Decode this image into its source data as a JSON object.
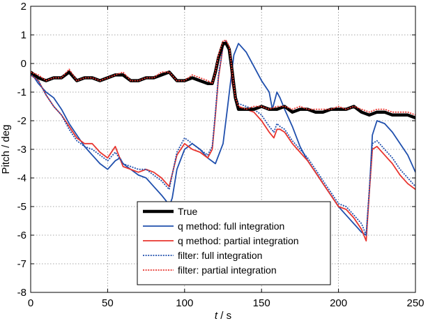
{
  "chart_data": {
    "type": "line",
    "xlabel": "t / s",
    "ylabel": "Pitch / deg",
    "xlim": [
      0,
      250
    ],
    "ylim": [
      -8,
      2
    ],
    "xticks": [
      0,
      50,
      100,
      150,
      200,
      250
    ],
    "yticks": [
      -8,
      -7,
      -6,
      -5,
      -4,
      -3,
      -2,
      -1,
      0,
      1,
      2
    ],
    "grid": true,
    "legend_position": "bottom-center",
    "series": [
      {
        "name": "True",
        "color": "#000000",
        "style": "solid-thick",
        "x": [
          0,
          5,
          10,
          15,
          20,
          25,
          30,
          35,
          40,
          45,
          50,
          55,
          60,
          65,
          70,
          75,
          80,
          85,
          90,
          95,
          100,
          105,
          110,
          115,
          118,
          120,
          122,
          125,
          127,
          129,
          131,
          133,
          135,
          140,
          145,
          150,
          155,
          160,
          165,
          170,
          175,
          180,
          185,
          190,
          195,
          200,
          205,
          210,
          215,
          220,
          225,
          230,
          235,
          240,
          245,
          250
        ],
        "y": [
          -0.3,
          -0.5,
          -0.6,
          -0.5,
          -0.5,
          -0.3,
          -0.6,
          -0.5,
          -0.5,
          -0.6,
          -0.5,
          -0.4,
          -0.4,
          -0.6,
          -0.6,
          -0.5,
          -0.5,
          -0.4,
          -0.3,
          -0.6,
          -0.6,
          -0.5,
          -0.6,
          -0.7,
          -0.7,
          -0.3,
          0.2,
          0.7,
          0.7,
          0.5,
          -0.3,
          -1.2,
          -1.6,
          -1.6,
          -1.6,
          -1.5,
          -1.6,
          -1.6,
          -1.5,
          -1.7,
          -1.6,
          -1.6,
          -1.7,
          -1.7,
          -1.6,
          -1.6,
          -1.6,
          -1.5,
          -1.7,
          -1.8,
          -1.7,
          -1.7,
          -1.8,
          -1.8,
          -1.8,
          -1.9
        ]
      },
      {
        "name": "q method: full integration",
        "color": "#1f4fad",
        "style": "solid",
        "x": [
          0,
          5,
          10,
          15,
          20,
          25,
          30,
          35,
          40,
          45,
          50,
          55,
          58,
          60,
          65,
          70,
          75,
          80,
          85,
          88,
          90,
          92,
          95,
          100,
          105,
          110,
          115,
          120,
          125,
          128,
          130,
          132,
          135,
          140,
          145,
          150,
          155,
          157,
          160,
          162,
          165,
          170,
          175,
          180,
          185,
          190,
          195,
          200,
          205,
          210,
          215,
          218,
          220,
          222,
          225,
          230,
          235,
          240,
          245,
          250
        ],
        "y": [
          -0.3,
          -0.7,
          -1.0,
          -1.2,
          -1.6,
          -2.1,
          -2.5,
          -2.9,
          -3.2,
          -3.5,
          -3.7,
          -3.4,
          -3.3,
          -3.5,
          -3.7,
          -3.9,
          -4.0,
          -4.3,
          -4.6,
          -4.8,
          -5.0,
          -4.7,
          -3.7,
          -3.0,
          -2.8,
          -3.0,
          -3.3,
          -3.5,
          -2.8,
          -1.5,
          -0.6,
          0.3,
          0.7,
          0.4,
          -0.1,
          -0.6,
          -1.0,
          -1.6,
          -1.0,
          -1.2,
          -1.6,
          -2.2,
          -2.9,
          -3.4,
          -3.8,
          -4.2,
          -4.6,
          -5.0,
          -5.3,
          -5.6,
          -5.9,
          -6.0,
          -4.5,
          -2.5,
          -2.0,
          -2.1,
          -2.4,
          -2.8,
          -3.2,
          -3.8
        ]
      },
      {
        "name": "q method: partial integration",
        "color": "#e8342e",
        "style": "solid",
        "x": [
          0,
          5,
          10,
          15,
          20,
          25,
          30,
          35,
          40,
          45,
          50,
          55,
          60,
          65,
          70,
          75,
          80,
          85,
          90,
          95,
          100,
          105,
          110,
          115,
          118,
          120,
          122,
          125,
          127,
          129,
          131,
          133,
          135,
          140,
          145,
          150,
          155,
          158,
          160,
          162,
          165,
          170,
          175,
          180,
          185,
          190,
          195,
          200,
          205,
          210,
          215,
          218,
          220,
          222,
          225,
          230,
          235,
          240,
          245,
          250
        ],
        "y": [
          -0.4,
          -0.6,
          -1.1,
          -1.5,
          -1.8,
          -2.2,
          -2.6,
          -2.8,
          -2.8,
          -3.1,
          -3.3,
          -2.9,
          -3.6,
          -3.7,
          -3.8,
          -3.7,
          -3.8,
          -4.0,
          -4.3,
          -3.2,
          -2.8,
          -3.0,
          -3.1,
          -3.3,
          -3.0,
          -1.8,
          -0.5,
          0.6,
          0.8,
          0.4,
          -0.7,
          -1.3,
          -1.5,
          -1.6,
          -1.7,
          -2.0,
          -2.4,
          -2.6,
          -2.3,
          -2.3,
          -2.4,
          -2.8,
          -3.1,
          -3.4,
          -3.8,
          -4.2,
          -4.6,
          -5.0,
          -5.1,
          -5.4,
          -5.8,
          -6.2,
          -4.5,
          -3.0,
          -2.9,
          -3.2,
          -3.5,
          -3.9,
          -4.2,
          -4.4
        ]
      },
      {
        "name": "filter: full integration",
        "color": "#1f4fad",
        "style": "dotted",
        "x": [
          0,
          5,
          10,
          15,
          20,
          25,
          30,
          35,
          40,
          45,
          50,
          55,
          60,
          65,
          70,
          75,
          80,
          85,
          90,
          95,
          100,
          105,
          110,
          115,
          118,
          120,
          122,
          125,
          127,
          129,
          131,
          133,
          135,
          140,
          145,
          150,
          155,
          158,
          160,
          162,
          165,
          170,
          175,
          180,
          185,
          190,
          195,
          200,
          205,
          210,
          215,
          218,
          220,
          222,
          225,
          230,
          235,
          240,
          245,
          250
        ],
        "y": [
          -0.4,
          -0.6,
          -1.1,
          -1.5,
          -1.8,
          -2.3,
          -2.7,
          -2.9,
          -3.0,
          -3.2,
          -3.4,
          -3.1,
          -3.5,
          -3.6,
          -3.7,
          -3.7,
          -3.9,
          -4.1,
          -4.4,
          -3.1,
          -2.6,
          -2.8,
          -3.0,
          -3.2,
          -2.9,
          -1.7,
          -0.4,
          0.6,
          0.8,
          0.5,
          -0.5,
          -1.1,
          -1.4,
          -1.5,
          -1.6,
          -1.8,
          -2.2,
          -2.4,
          -2.1,
          -2.2,
          -2.3,
          -2.7,
          -3.0,
          -3.3,
          -3.7,
          -4.1,
          -4.5,
          -4.9,
          -5.0,
          -5.3,
          -5.6,
          -6.0,
          -4.4,
          -2.8,
          -2.7,
          -3.0,
          -3.3,
          -3.7,
          -4.0,
          -4.3
        ]
      },
      {
        "name": "filter: partial integration",
        "color": "#e8342e",
        "style": "dotted",
        "x": [
          0,
          5,
          10,
          15,
          20,
          25,
          30,
          35,
          40,
          45,
          50,
          55,
          60,
          65,
          70,
          75,
          80,
          85,
          90,
          95,
          100,
          105,
          110,
          115,
          118,
          120,
          122,
          125,
          127,
          129,
          131,
          133,
          135,
          140,
          145,
          150,
          155,
          160,
          165,
          170,
          175,
          180,
          185,
          190,
          195,
          200,
          205,
          210,
          215,
          220,
          225,
          230,
          235,
          240,
          245,
          250
        ],
        "y": [
          -0.3,
          -0.4,
          -0.6,
          -0.5,
          -0.5,
          -0.2,
          -0.6,
          -0.5,
          -0.5,
          -0.6,
          -0.5,
          -0.4,
          -0.3,
          -0.6,
          -0.6,
          -0.5,
          -0.5,
          -0.3,
          -0.3,
          -0.6,
          -0.6,
          -0.4,
          -0.5,
          -0.6,
          -0.7,
          -0.3,
          0.3,
          0.8,
          0.8,
          0.6,
          -0.3,
          -1.2,
          -1.5,
          -1.6,
          -1.5,
          -1.5,
          -1.6,
          -1.5,
          -1.5,
          -1.6,
          -1.5,
          -1.6,
          -1.6,
          -1.6,
          -1.6,
          -1.5,
          -1.6,
          -1.5,
          -1.6,
          -1.7,
          -1.6,
          -1.6,
          -1.7,
          -1.7,
          -1.7,
          -1.8
        ]
      }
    ]
  }
}
